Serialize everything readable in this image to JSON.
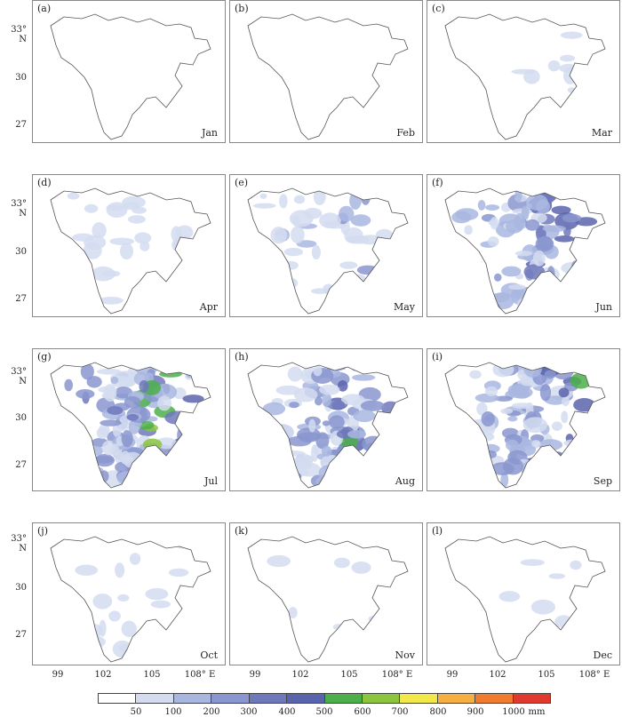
{
  "panels": [
    {
      "label": "(a)",
      "month": "Jan"
    },
    {
      "label": "(b)",
      "month": "Feb"
    },
    {
      "label": "(c)",
      "month": "Mar"
    },
    {
      "label": "(d)",
      "month": "Apr"
    },
    {
      "label": "(e)",
      "month": "May"
    },
    {
      "label": "(f)",
      "month": "Jun"
    },
    {
      "label": "(g)",
      "month": "Jul"
    },
    {
      "label": "(h)",
      "month": "Aug"
    },
    {
      "label": "(i)",
      "month": "Sep"
    },
    {
      "label": "(j)",
      "month": "Oct"
    },
    {
      "label": "(k)",
      "month": "Nov"
    },
    {
      "label": "(l)",
      "month": "Dec"
    }
  ],
  "axes": {
    "lat_ticks": [
      "33° N",
      "30",
      "27"
    ],
    "lon_ticks": [
      "99",
      "102",
      "105",
      "108° E"
    ]
  },
  "colorbar": {
    "labels": [
      "50",
      "100",
      "200",
      "300",
      "400",
      "500",
      "600",
      "700",
      "800",
      "900",
      "1000"
    ],
    "unit": "mm",
    "colors": [
      "#ffffff",
      "#d4dcf0",
      "#a9b7e0",
      "#8a96cf",
      "#7078bc",
      "#5a64ad",
      "#4caf4a",
      "#8cc63f",
      "#f2e84a",
      "#f5b041",
      "#f07b2f",
      "#e03a2f"
    ]
  },
  "levels": {
    "Jan": 0,
    "Feb": 0,
    "Mar": 0.5,
    "Apr": 1,
    "May": 1.5,
    "Jun": 3,
    "Jul": 4,
    "Aug": 3.5,
    "Sep": 3.5,
    "Oct": 0.8,
    "Nov": 0.3,
    "Dec": 0.3
  }
}
